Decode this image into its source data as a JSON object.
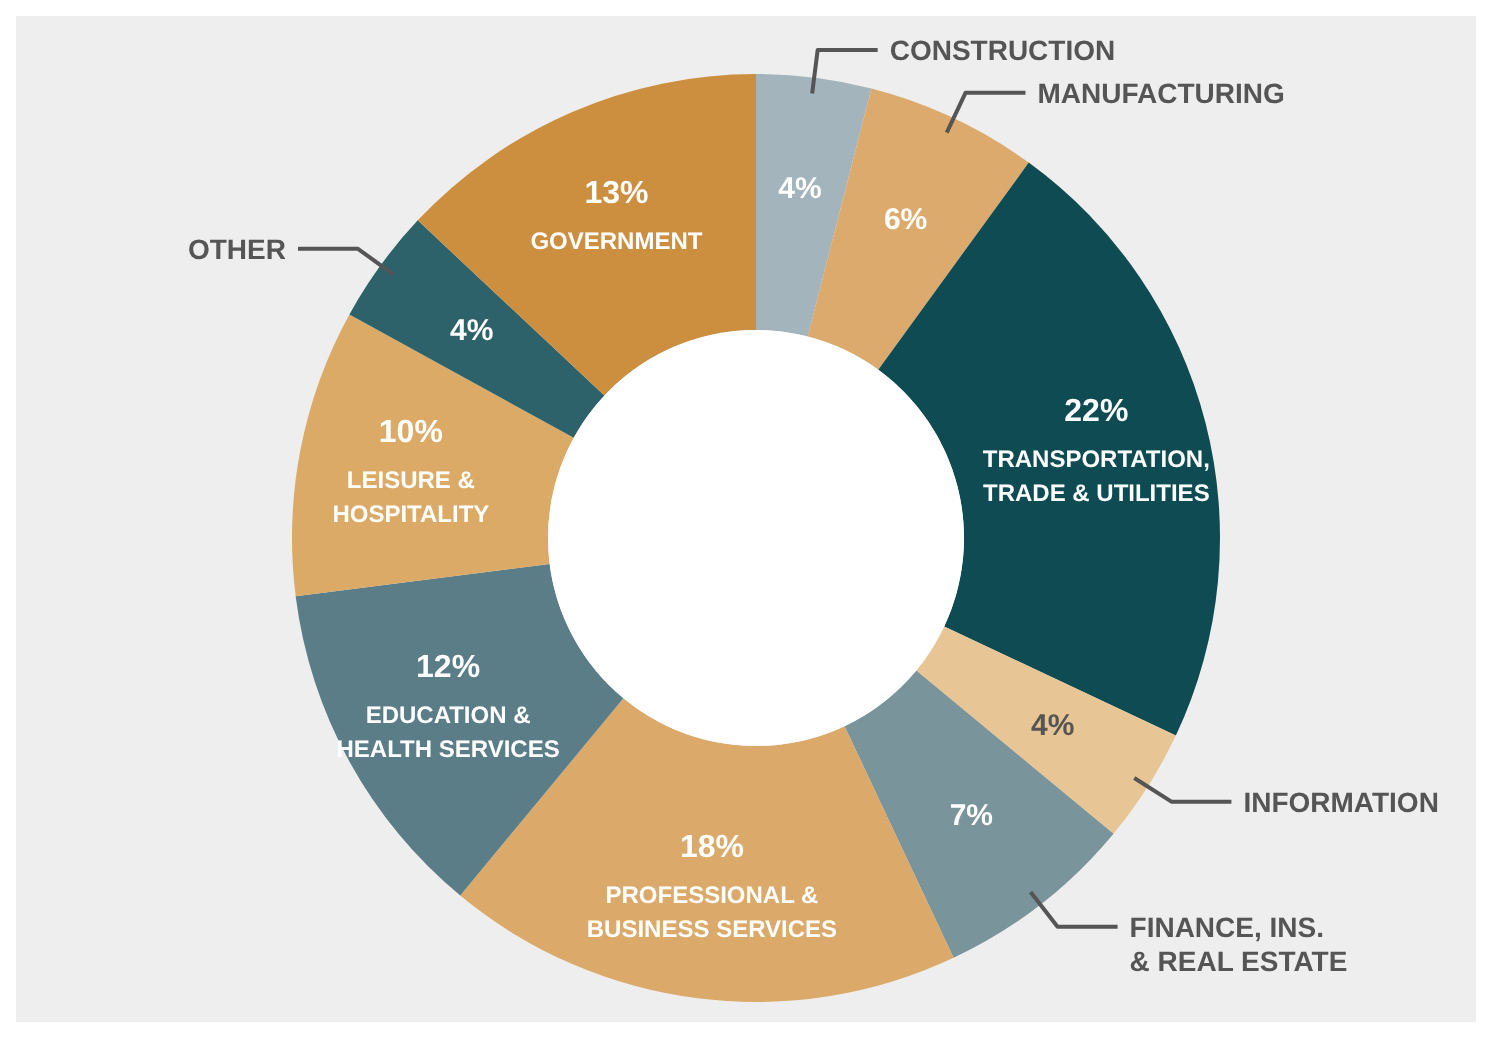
{
  "chart_data": {
    "type": "donut",
    "categories": [
      "CONSTRUCTION",
      "MANUFACTURING",
      "TRANSPORTATION,\nTRADE & UTILITIES",
      "INFORMATION",
      "FINANCE, INS.\n& REAL ESTATE",
      "PROFESSIONAL &\nBUSINESS SERVICES",
      "EDUCATION &\nHEALTH SERVICES",
      "LEISURE &\nHOSPITALITY",
      "OTHER",
      "GOVERNMENT"
    ],
    "values": [
      4,
      6,
      22,
      4,
      7,
      18,
      12,
      10,
      4,
      13
    ],
    "colors": [
      "#a4b4bd",
      "#dcaa6c",
      "#0e4b52",
      "#e8c594",
      "#7a949b",
      "#dba96a",
      "#5a7d88",
      "#dcaa67",
      "#2e626b",
      "#cc8e3f"
    ],
    "value_labels": [
      "4%",
      "6%",
      "22%",
      "4%",
      "7%",
      "18%",
      "12%",
      "10%",
      "4%",
      "13%"
    ]
  }
}
